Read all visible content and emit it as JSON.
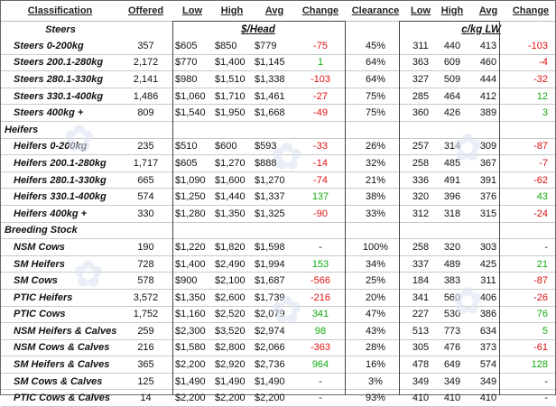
{
  "headers": {
    "classification": "Classification",
    "offered": "Offered",
    "low": "Low",
    "high": "High",
    "avg": "Avg",
    "change": "Change",
    "clearance": "Clearance",
    "low2": "Low",
    "high2": "High",
    "avg2": "Avg",
    "change2": "Change"
  },
  "units": {
    "head": "$/Head",
    "ckg": "c/kg LW"
  },
  "sections": [
    {
      "title": "Steers",
      "rows": [
        {
          "name": "Steers 0-200kg",
          "offered": "357",
          "low": "$605",
          "high": "$850",
          "avg": "$779",
          "change": "-75",
          "clearance": "45%",
          "low2": "311",
          "high2": "440",
          "avg2": "413",
          "change2": "-103"
        },
        {
          "name": "Steers 200.1-280kg",
          "offered": "2,172",
          "low": "$770",
          "high": "$1,400",
          "avg": "$1,145",
          "change": "1",
          "clearance": "64%",
          "low2": "363",
          "high2": "609",
          "avg2": "460",
          "change2": "-4"
        },
        {
          "name": "Steers 280.1-330kg",
          "offered": "2,141",
          "low": "$980",
          "high": "$1,510",
          "avg": "$1,338",
          "change": "-103",
          "clearance": "64%",
          "low2": "327",
          "high2": "509",
          "avg2": "444",
          "change2": "-32"
        },
        {
          "name": "Steers 330.1-400kg",
          "offered": "1,486",
          "low": "$1,060",
          "high": "$1,710",
          "avg": "$1,461",
          "change": "-27",
          "clearance": "75%",
          "low2": "285",
          "high2": "464",
          "avg2": "412",
          "change2": "12"
        },
        {
          "name": "Steers 400kg +",
          "offered": "809",
          "low": "$1,540",
          "high": "$1,950",
          "avg": "$1,668",
          "change": "-49",
          "clearance": "75%",
          "low2": "360",
          "high2": "426",
          "avg2": "389",
          "change2": "3"
        }
      ]
    },
    {
      "title": "Heifers",
      "rows": [
        {
          "name": "Heifers 0-200kg",
          "offered": "235",
          "low": "$510",
          "high": "$600",
          "avg": "$593",
          "change": "-33",
          "clearance": "26%",
          "low2": "257",
          "high2": "314",
          "avg2": "309",
          "change2": "-87"
        },
        {
          "name": "Heifers 200.1-280kg",
          "offered": "1,717",
          "low": "$605",
          "high": "$1,270",
          "avg": "$888",
          "change": "-14",
          "clearance": "32%",
          "low2": "258",
          "high2": "485",
          "avg2": "367",
          "change2": "-7"
        },
        {
          "name": "Heifers 280.1-330kg",
          "offered": "665",
          "low": "$1,090",
          "high": "$1,600",
          "avg": "$1,270",
          "change": "-74",
          "clearance": "21%",
          "low2": "336",
          "high2": "491",
          "avg2": "391",
          "change2": "-62"
        },
        {
          "name": "Heifers 330.1-400kg",
          "offered": "574",
          "low": "$1,250",
          "high": "$1,440",
          "avg": "$1,337",
          "change": "137",
          "clearance": "38%",
          "low2": "320",
          "high2": "396",
          "avg2": "376",
          "change2": "43"
        },
        {
          "name": "Heifers 400kg +",
          "offered": "330",
          "low": "$1,280",
          "high": "$1,350",
          "avg": "$1,325",
          "change": "-90",
          "clearance": "33%",
          "low2": "312",
          "high2": "318",
          "avg2": "315",
          "change2": "-24"
        }
      ]
    },
    {
      "title": "Breeding Stock",
      "rows": [
        {
          "name": "NSM Cows",
          "offered": "190",
          "low": "$1,220",
          "high": "$1,820",
          "avg": "$1,598",
          "change": "-",
          "clearance": "100%",
          "low2": "258",
          "high2": "320",
          "avg2": "303",
          "change2": "-"
        },
        {
          "name": "SM Heifers",
          "offered": "728",
          "low": "$1,400",
          "high": "$2,490",
          "avg": "$1,994",
          "change": "153",
          "clearance": "34%",
          "low2": "337",
          "high2": "489",
          "avg2": "425",
          "change2": "21"
        },
        {
          "name": "SM Cows",
          "offered": "578",
          "low": "$900",
          "high": "$2,100",
          "avg": "$1,687",
          "change": "-566",
          "clearance": "25%",
          "low2": "184",
          "high2": "383",
          "avg2": "311",
          "change2": "-87"
        },
        {
          "name": "PTIC Heifers",
          "offered": "3,572",
          "low": "$1,350",
          "high": "$2,600",
          "avg": "$1,739",
          "change": "-216",
          "clearance": "20%",
          "low2": "341",
          "high2": "560",
          "avg2": "406",
          "change2": "-26"
        },
        {
          "name": "PTIC Cows",
          "offered": "1,752",
          "low": "$1,160",
          "high": "$2,520",
          "avg": "$2,079",
          "change": "341",
          "clearance": "47%",
          "low2": "227",
          "high2": "530",
          "avg2": "386",
          "change2": "76"
        },
        {
          "name": "NSM Heifers & Calves",
          "offered": "259",
          "low": "$2,300",
          "high": "$3,520",
          "avg": "$2,974",
          "change": "98",
          "clearance": "43%",
          "low2": "513",
          "high2": "773",
          "avg2": "634",
          "change2": "5"
        },
        {
          "name": "NSM Cows & Calves",
          "offered": "216",
          "low": "$1,580",
          "high": "$2,800",
          "avg": "$2,066",
          "change": "-363",
          "clearance": "28%",
          "low2": "305",
          "high2": "476",
          "avg2": "373",
          "change2": "-61"
        },
        {
          "name": "SM Heifers & Calves",
          "offered": "365",
          "low": "$2,200",
          "high": "$2,920",
          "avg": "$2,736",
          "change": "964",
          "clearance": "16%",
          "low2": "478",
          "high2": "649",
          "avg2": "574",
          "change2": "128"
        },
        {
          "name": "SM Cows & Calves",
          "offered": "125",
          "low": "$1,490",
          "high": "$1,490",
          "avg": "$1,490",
          "change": "-",
          "clearance": "3%",
          "low2": "349",
          "high2": "349",
          "avg2": "349",
          "change2": "-"
        },
        {
          "name": "PTIC Cows & Calves",
          "offered": "14",
          "low": "$2,200",
          "high": "$2,200",
          "avg": "$2,200",
          "change": "-",
          "clearance": "93%",
          "low2": "410",
          "high2": "410",
          "avg2": "410",
          "change2": "-"
        }
      ]
    }
  ]
}
